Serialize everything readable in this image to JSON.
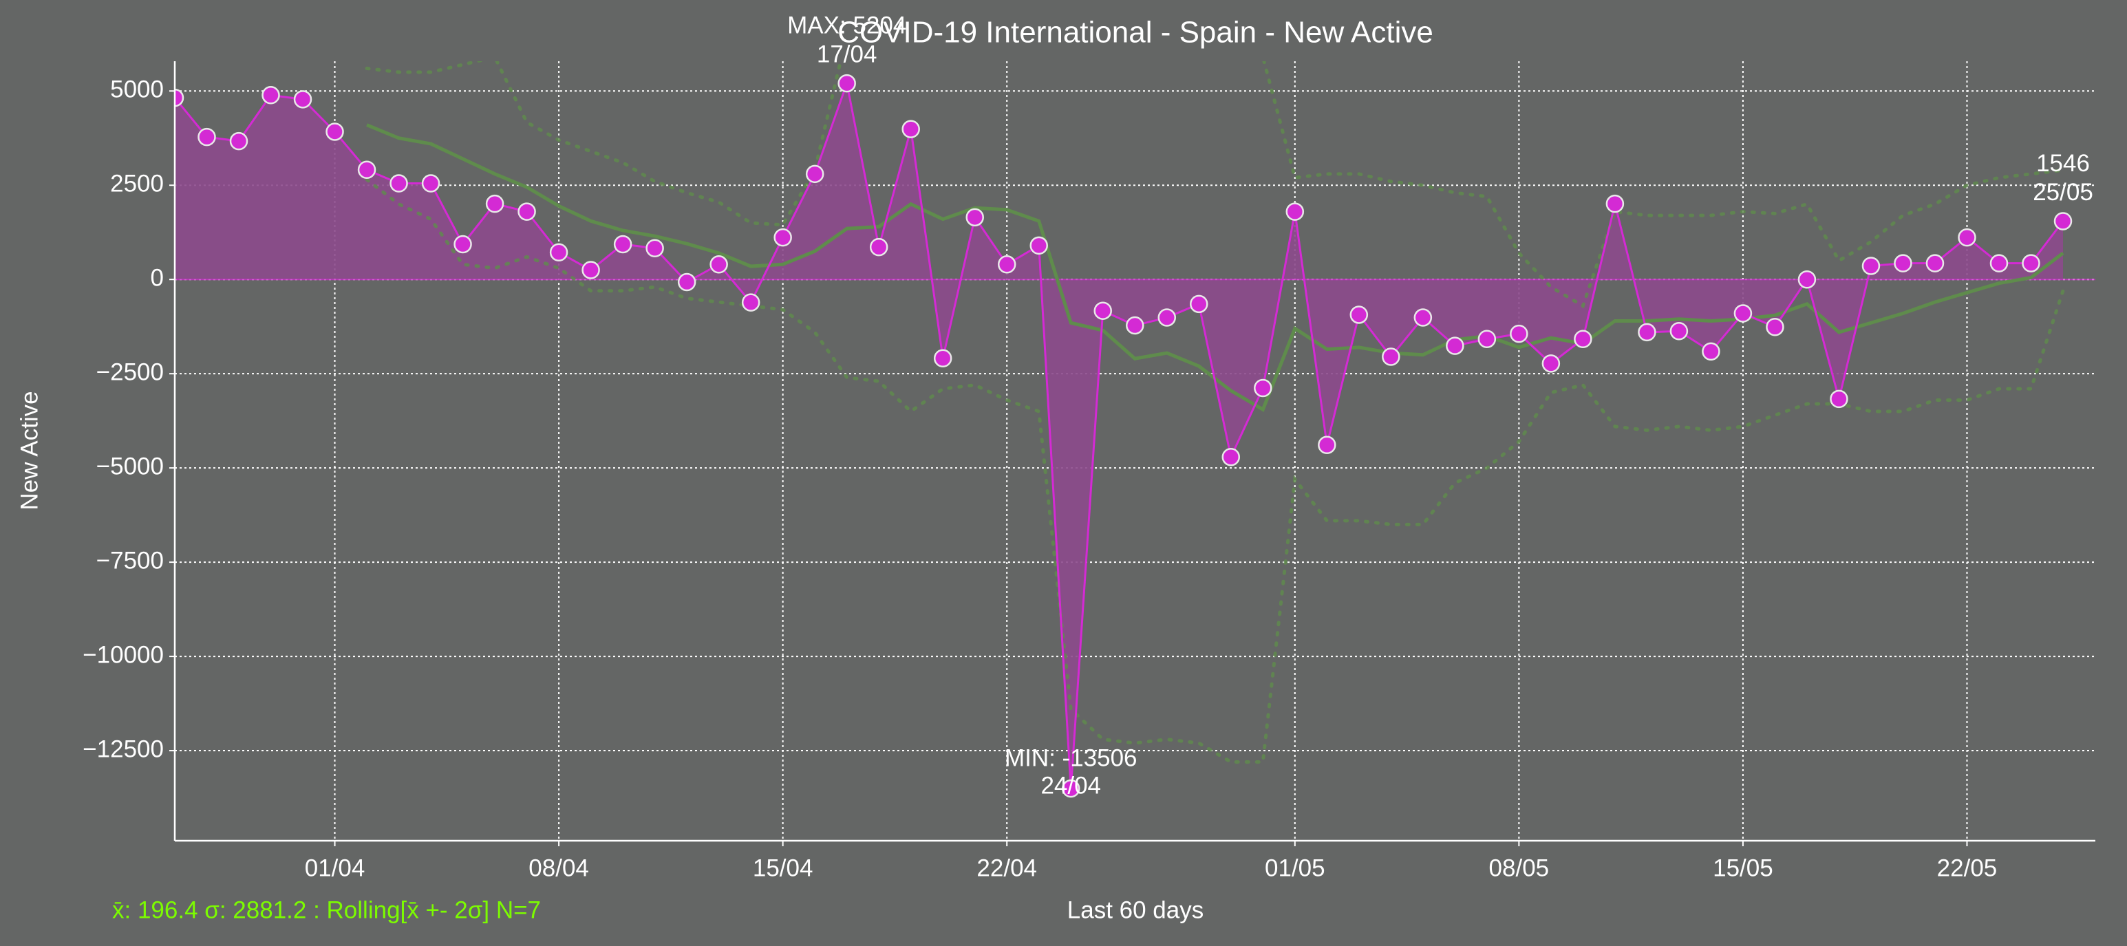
{
  "chart_data": {
    "type": "line",
    "title": "COVID-19 International - Spain - New Active",
    "xlabel": "Last 60 days",
    "ylabel": "New Active",
    "footer": "x̄: 196.4 σ: 2881.2 : Rolling[x̄ +- 2σ] N=7",
    "x": [
      "27/03",
      "28/03",
      "29/03",
      "30/03",
      "31/03",
      "01/04",
      "02/04",
      "03/04",
      "04/04",
      "05/04",
      "06/04",
      "07/04",
      "08/04",
      "09/04",
      "10/04",
      "11/04",
      "12/04",
      "13/04",
      "14/04",
      "15/04",
      "16/04",
      "17/04",
      "18/04",
      "19/04",
      "20/04",
      "21/04",
      "22/04",
      "23/04",
      "24/04",
      "25/04",
      "26/04",
      "27/04",
      "28/04",
      "29/04",
      "30/04",
      "01/05",
      "02/05",
      "03/05",
      "04/05",
      "05/05",
      "06/05",
      "07/05",
      "08/05",
      "09/05",
      "10/05",
      "11/05",
      "12/05",
      "13/05",
      "14/05",
      "15/05",
      "16/05",
      "17/05",
      "18/05",
      "19/05",
      "20/05",
      "21/05",
      "22/05",
      "23/05",
      "24/05",
      "25/05"
    ],
    "values": [
      4820,
      3780,
      3670,
      4890,
      4780,
      3920,
      2910,
      2550,
      2550,
      935,
      2010,
      1800,
      720,
      250,
      935,
      830,
      -70,
      400,
      -610,
      1115,
      2800,
      5204,
      860,
      3990,
      -2090,
      1650,
      400,
      900,
      -13506,
      -830,
      -1220,
      -1010,
      -650,
      -4710,
      -2880,
      1800,
      -4390,
      -935,
      -2050,
      -1010,
      -1760,
      -1580,
      -1440,
      -2230,
      -1580,
      2010,
      -1400,
      -1370,
      -1910,
      -900,
      -1260,
      0,
      -3170,
      360,
      430,
      430,
      1115,
      430,
      430,
      1546
    ],
    "rolling_mean": [
      null,
      null,
      null,
      null,
      null,
      null,
      4100,
      3750,
      3600,
      3200,
      2800,
      2450,
      1950,
      1550,
      1300,
      1150,
      950,
      700,
      350,
      400,
      750,
      1350,
      1400,
      2000,
      1600,
      1900,
      1850,
      1550,
      -1150,
      -1350,
      -2100,
      -1950,
      -2300,
      -2950,
      -3450,
      -1300,
      -1850,
      -1800,
      -1950,
      -2000,
      -1600,
      -1500,
      -1800,
      -1550,
      -1700,
      -1100,
      -1100,
      -1050,
      -1100,
      -1050,
      -950,
      -650,
      -1400,
      -1150,
      -900,
      -600,
      -350,
      -100,
      50,
      700
    ],
    "rolling_upper": [
      null,
      null,
      null,
      null,
      null,
      null,
      5600,
      5500,
      5500,
      5700,
      5900,
      4170,
      3700,
      3400,
      3100,
      2600,
      2300,
      2050,
      1500,
      1450,
      2900,
      6500,
      6000,
      7500,
      8000,
      8500,
      8500,
      8500,
      9000,
      9000,
      9000,
      9000,
      9000,
      8000,
      5900,
      2700,
      2800,
      2800,
      2600,
      2500,
      2300,
      2200,
      700,
      -200,
      -700,
      1800,
      1700,
      1700,
      1700,
      1800,
      1750,
      2000,
      500,
      1000,
      1700,
      2000,
      2500,
      2700,
      2800,
      2900
    ],
    "rolling_lower": [
      null,
      null,
      null,
      null,
      null,
      null,
      2650,
      2000,
      1600,
      400,
      300,
      600,
      300,
      -300,
      -300,
      -200,
      -500,
      -600,
      -700,
      -800,
      -1400,
      -2600,
      -2700,
      -3500,
      -2900,
      -2800,
      -3200,
      -3500,
      -11400,
      -12200,
      -12300,
      -12200,
      -12300,
      -12800,
      -12800,
      -5300,
      -6400,
      -6400,
      -6500,
      -6500,
      -5400,
      -5000,
      -4300,
      -3000,
      -2800,
      -3900,
      -4000,
      -3900,
      -4000,
      -3900,
      -3600,
      -3300,
      -3300,
      -3500,
      -3500,
      -3200,
      -3200,
      -2900,
      -2900,
      -300
    ],
    "color": "#d42ad4",
    "fill_color": "#8c4a8c",
    "rolling_color": "#5f8c4c",
    "background": "#646665",
    "footer_color": "#7cfc00",
    "ylim": [
      -14890,
      5790
    ],
    "yticks": [
      {
        "value": -12500,
        "label": "−12500"
      },
      {
        "value": -10000,
        "label": "−10000"
      },
      {
        "value": -7500,
        "label": "−7500"
      },
      {
        "value": -5000,
        "label": "−5000"
      },
      {
        "value": -2500,
        "label": "−2500"
      },
      0,
      2500,
      5000
    ],
    "xticks": [
      "01/04",
      "08/04",
      "15/04",
      "22/04",
      "01/05",
      "08/05",
      "15/05",
      "22/05"
    ],
    "grid": true,
    "annotations": [
      {
        "label": "MAX: 5204",
        "date": "17/04"
      },
      {
        "label": "MIN: -13506",
        "date": "24/04"
      },
      {
        "label": "1546",
        "date": "25/05"
      }
    ]
  }
}
